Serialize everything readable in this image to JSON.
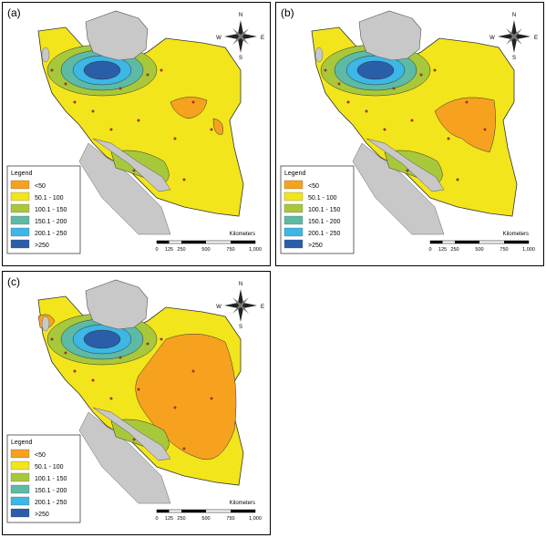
{
  "panels": [
    {
      "label": "(a)"
    },
    {
      "label": "(b)"
    },
    {
      "label": "(c)"
    }
  ],
  "compass": {
    "north": "N",
    "south": "S",
    "west": "W",
    "east": "E"
  },
  "legend": {
    "title": "Legend",
    "items": [
      {
        "label": "<50",
        "color": "#f6a21f"
      },
      {
        "label": "50.1 - 100",
        "color": "#f2e51b"
      },
      {
        "label": "100.1 - 150",
        "color": "#a8c83b"
      },
      {
        "label": "150.1 - 200",
        "color": "#5dbaa5"
      },
      {
        "label": "200.1 - 250",
        "color": "#3cb7e6"
      },
      {
        "label": ">250",
        "color": "#2b5ea9"
      }
    ]
  },
  "scale": {
    "unit": "Kilometers",
    "labels": [
      "0",
      "125",
      "250",
      "500",
      "750",
      "1,000"
    ]
  }
}
